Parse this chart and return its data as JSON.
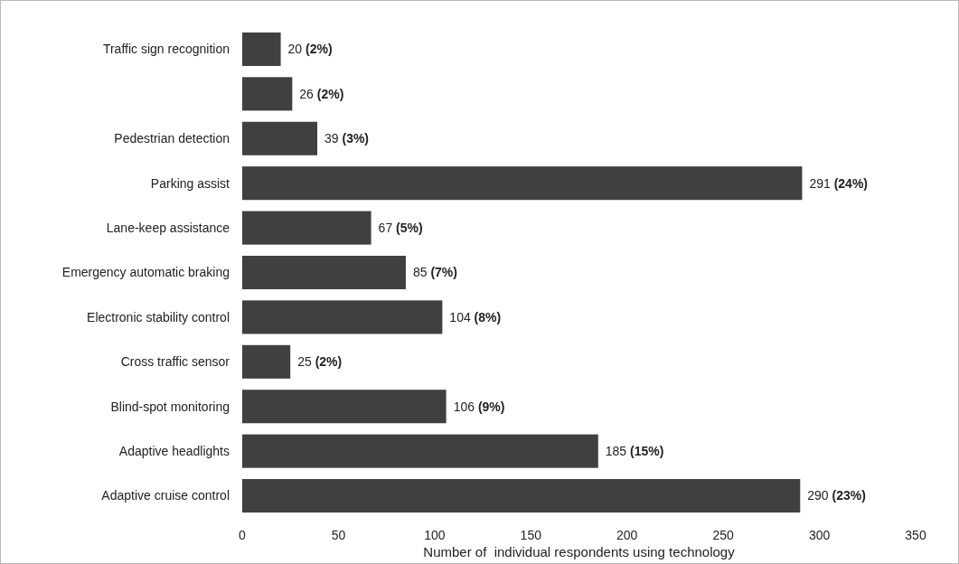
{
  "chart_data": {
    "type": "bar",
    "orientation": "horizontal",
    "xlabel": "Number of  individual respondents using technology",
    "categories": [
      "Traffic sign recognition",
      null,
      "Pedestrian detection",
      "Parking assist",
      "Lane-keep assistance",
      "Emergency automatic braking",
      "Electronic stability control",
      "Cross traffic sensor",
      "Blind-spot monitoring",
      "Adaptive headlights",
      "Adaptive cruise control"
    ],
    "values": [
      20,
      26,
      39,
      291,
      67,
      85,
      104,
      25,
      106,
      185,
      290
    ],
    "value_labels": [
      "20 (2%)",
      "26 (2%)",
      "39 (3%)",
      "291 (24%)",
      "67 (5%)",
      "85 (7%)",
      "104 (8%)",
      "25 (2%)",
      "106 (9%)",
      "185 (15%)",
      "290 (23%)"
    ],
    "color": "#404040",
    "xlim": [
      0,
      350
    ],
    "xticks": [
      0,
      50,
      100,
      150,
      200,
      250,
      300,
      350
    ]
  }
}
